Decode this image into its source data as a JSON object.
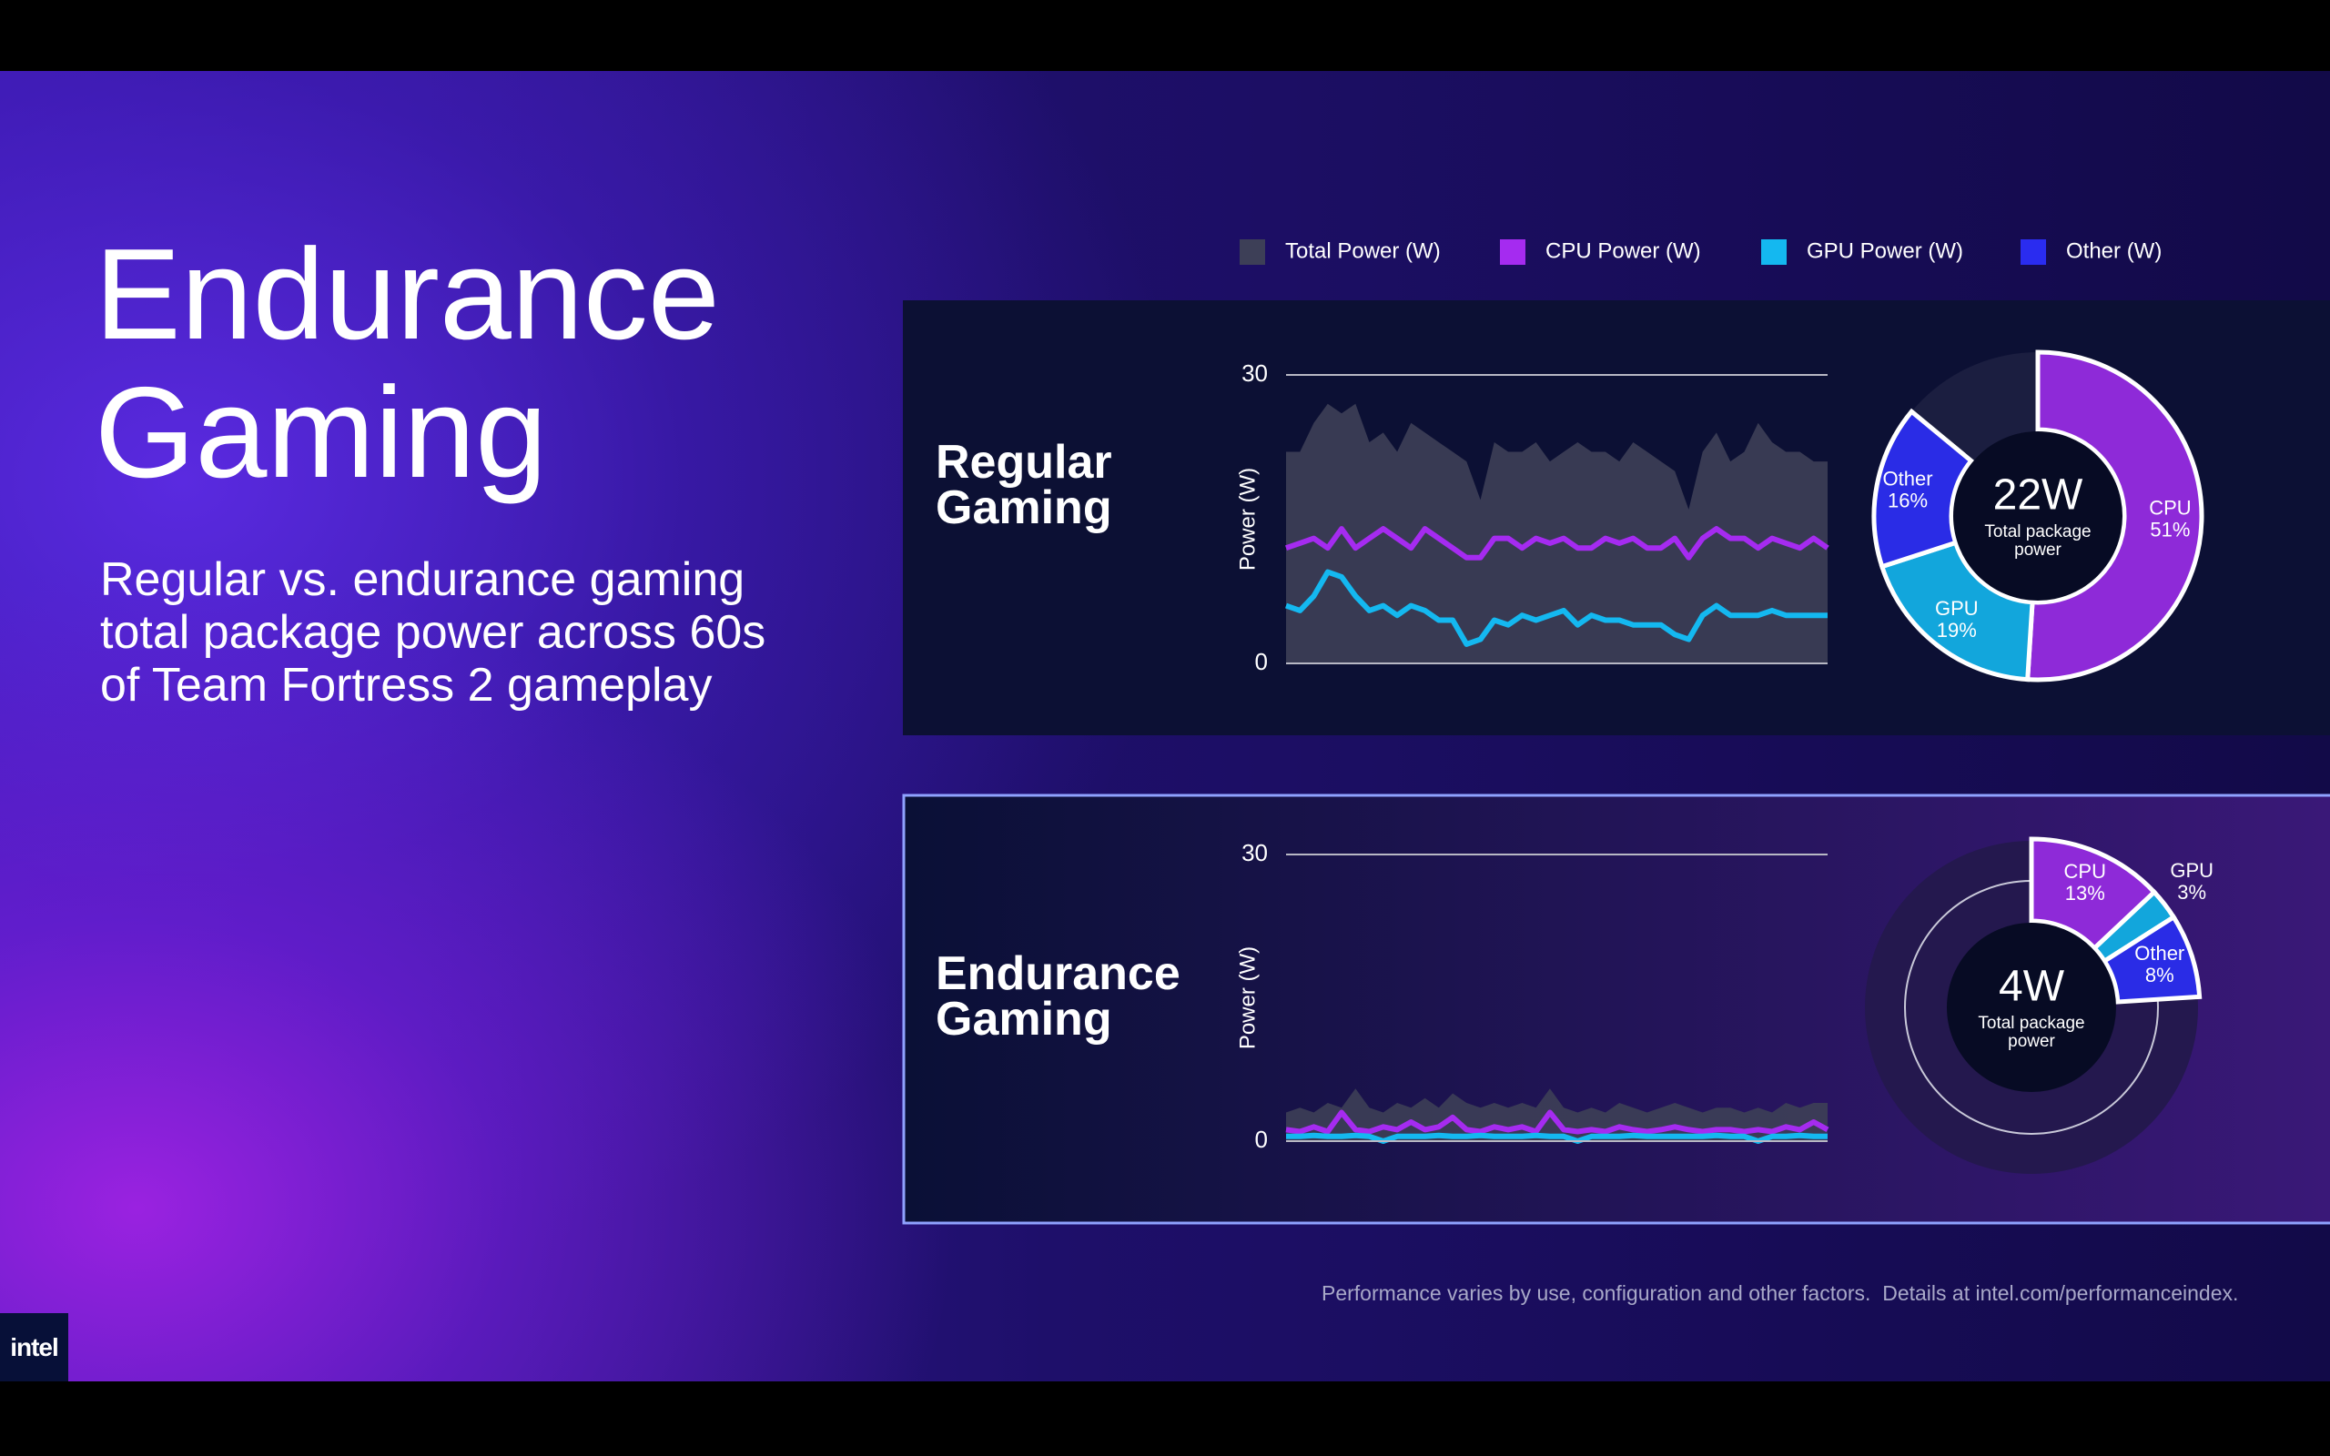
{
  "slide": {
    "title": "Endurance Gaming",
    "subtitle": "Regular vs. endurance gaming total package power across 60s of Team Fortress 2 gameplay",
    "footnote": "Performance varies by use, configuration and other factors.  Details at intel.com/performanceindex.",
    "logo": "intel",
    "legend": [
      {
        "name": "Total Power (W)",
        "color": "#3d3f57"
      },
      {
        "name": "CPU Power (W)",
        "color": "#a52bf0"
      },
      {
        "name": "GPU Power (W)",
        "color": "#14b8f0"
      },
      {
        "name": "Other (W)",
        "color": "#2a2cf0"
      }
    ]
  },
  "chart_data": [
    {
      "type": "line",
      "title": "Regular Gaming",
      "ylabel": "Power (W)",
      "ylim": [
        0,
        30
      ],
      "yticks": [
        0,
        30
      ],
      "grid": true,
      "series": [
        {
          "name": "Total Power (W)",
          "color": "#3d3f57",
          "area": true,
          "values": [
            22,
            22,
            25,
            27,
            26,
            27,
            23,
            24,
            22,
            25,
            24,
            23,
            22,
            21,
            17,
            23,
            22,
            22,
            23,
            21,
            22,
            23,
            22,
            22,
            21,
            23,
            22,
            21,
            20,
            16,
            22,
            24,
            21,
            22,
            25,
            23,
            22,
            22,
            21,
            21
          ]
        },
        {
          "name": "CPU Power (W)",
          "color": "#a52bf0",
          "values": [
            12,
            12.5,
            13,
            12,
            14,
            12,
            13,
            14,
            13,
            12,
            14,
            13,
            12,
            11,
            11,
            13,
            13,
            12,
            13,
            12.5,
            13,
            12,
            12,
            13,
            12.5,
            13,
            12,
            12,
            13,
            11,
            13,
            14,
            13,
            13,
            12,
            13,
            12.5,
            12,
            13,
            12
          ]
        },
        {
          "name": "GPU Power (W)",
          "color": "#14b8f0",
          "values": [
            6,
            5.5,
            7,
            9.5,
            9,
            7,
            5.5,
            6,
            5,
            6,
            5.5,
            4.5,
            4.5,
            2,
            2.5,
            4.5,
            4,
            5,
            4.5,
            5,
            5.5,
            4,
            5,
            4.5,
            4.5,
            4,
            4,
            4,
            3,
            2.5,
            5,
            6,
            5,
            5,
            5,
            5.5,
            5,
            5,
            5,
            5
          ]
        }
      ]
    },
    {
      "type": "pie",
      "center_label": "22W",
      "center_caption": "Total package power",
      "categories": [
        "CPU",
        "GPU",
        "Other"
      ],
      "values": [
        51,
        19,
        16
      ],
      "value_labels": [
        "51%",
        "19%",
        "16%"
      ],
      "colors": [
        "#8e2ad8",
        "#12a6dc",
        "#2a2ce6"
      ]
    },
    {
      "type": "line",
      "title": "Endurance Gaming",
      "ylabel": "Power (W)",
      "ylim": [
        0,
        30
      ],
      "yticks": [
        0,
        30
      ],
      "grid": true,
      "series": [
        {
          "name": "Total Power (W)",
          "color": "#3d3f57",
          "area": true,
          "values": [
            3,
            3.5,
            3,
            4,
            3.5,
            5.5,
            3.5,
            3,
            4,
            3.5,
            4.5,
            3.5,
            5,
            4,
            3.5,
            4,
            3.5,
            4,
            3.5,
            5.5,
            3.5,
            3,
            3.5,
            3,
            4,
            3.5,
            3,
            3.5,
            4,
            3.5,
            3,
            3.5,
            3.5,
            3,
            3.5,
            3,
            4,
            3.5,
            4,
            4
          ]
        },
        {
          "name": "CPU Power (W)",
          "color": "#a52bf0",
          "values": [
            1.2,
            1,
            1.5,
            1,
            3,
            1.2,
            1,
            1.5,
            1.2,
            2,
            1.2,
            1.5,
            2.5,
            1.2,
            1,
            1.5,
            1.2,
            1.5,
            1,
            3,
            1.2,
            1,
            1.2,
            1,
            1.5,
            1.2,
            1,
            1.2,
            1.5,
            1.2,
            1,
            1.2,
            1.2,
            1,
            1.2,
            1,
            1.5,
            1.2,
            2,
            1.2
          ]
        },
        {
          "name": "GPU Power (W)",
          "color": "#14b8f0",
          "values": [
            0.5,
            0.5,
            0.6,
            0.5,
            0.5,
            0.6,
            0.5,
            0,
            0.5,
            0.5,
            0.5,
            0.6,
            0.5,
            0.5,
            0.6,
            0.5,
            0.5,
            0.5,
            0.6,
            0.5,
            0.5,
            0,
            0.5,
            0.5,
            0.5,
            0.6,
            0.5,
            0.5,
            0.5,
            0.5,
            0.5,
            0.6,
            0.5,
            0.5,
            0,
            0.5,
            0.5,
            0.6,
            0.5,
            0.5
          ]
        }
      ]
    },
    {
      "type": "pie",
      "center_label": "4W",
      "center_caption": "Total package power",
      "categories": [
        "CPU",
        "GPU",
        "Other"
      ],
      "values": [
        13,
        3,
        8
      ],
      "value_labels": [
        "13%",
        "3%",
        "8%"
      ],
      "colors": [
        "#8e2ad8",
        "#12a6dc",
        "#2a2ce6"
      ]
    }
  ]
}
